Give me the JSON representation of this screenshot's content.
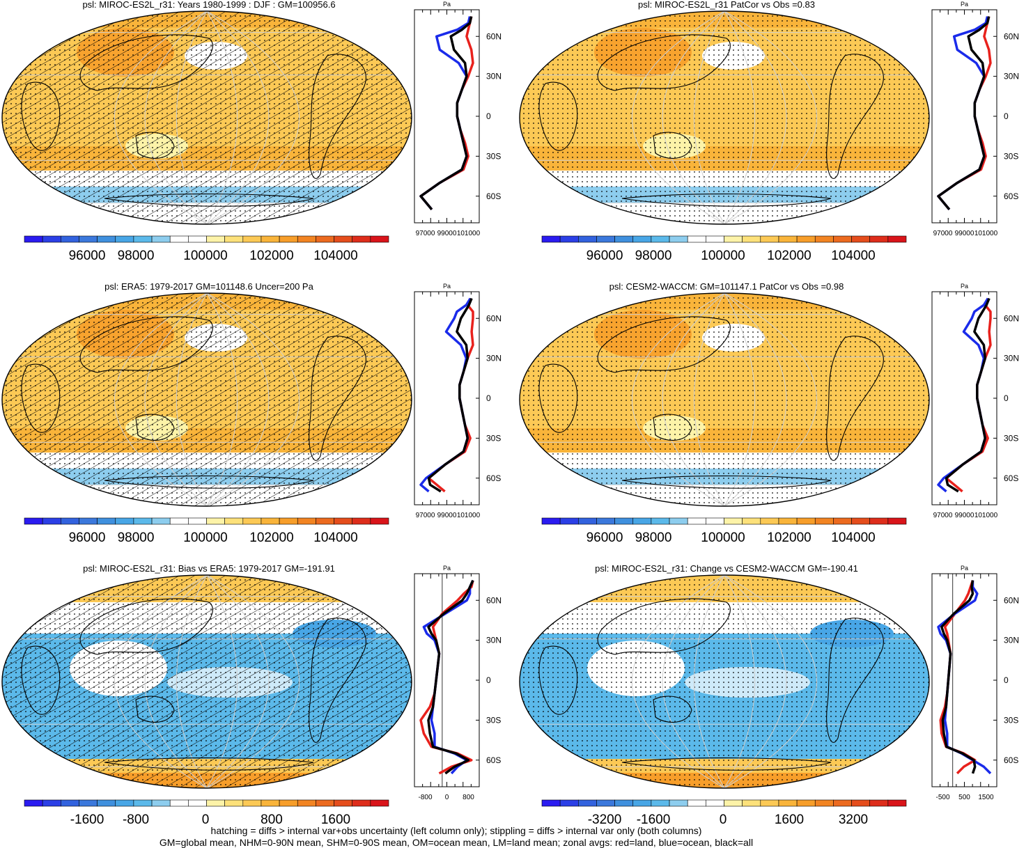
{
  "panels": [
    {
      "title": "psl: MIROC-ES2L_r31: Years 1980-1999 : DJF : GM=100956.6",
      "kind": "abs",
      "hatch": true,
      "colorbar_ticks": [
        "96000",
        "98000",
        "100000",
        "102000",
        "104000"
      ],
      "profile_xticks": [
        "97000",
        "99000",
        "101000"
      ],
      "profile_unit": "Pa"
    },
    {
      "title": "psl: MIROC-ES2L_r31 PatCor vs Obs =0.83",
      "kind": "abs",
      "hatch": false,
      "colorbar_ticks": [
        "96000",
        "98000",
        "100000",
        "102000",
        "104000"
      ],
      "profile_xticks": [
        "97000",
        "99000",
        "101000"
      ],
      "profile_unit": "Pa"
    },
    {
      "title": "psl: ERA5: 1979-2017 GM=101148.6 Uncer=200 Pa",
      "kind": "abs",
      "hatch": true,
      "colorbar_ticks": [
        "96000",
        "98000",
        "100000",
        "102000",
        "104000"
      ],
      "profile_xticks": [
        "97000",
        "99000",
        "101000"
      ],
      "profile_unit": "Pa"
    },
    {
      "title": "psl: CESM2-WACCM: GM=101147.1 PatCor vs Obs =0.98",
      "kind": "abs",
      "hatch": false,
      "colorbar_ticks": [
        "96000",
        "98000",
        "100000",
        "102000",
        "104000"
      ],
      "profile_xticks": [
        "97000",
        "99000",
        "101000"
      ],
      "profile_unit": "Pa"
    },
    {
      "title": "psl: MIROC-ES2L_r31: Bias vs ERA5: 1979-2017 GM=-191.91",
      "kind": "diff",
      "hatch": true,
      "colorbar_ticks": [
        "-1600",
        "-800",
        "0",
        "800",
        "1600"
      ],
      "profile_xticks": [
        "-800",
        "0",
        "800"
      ],
      "profile_unit": "Pa"
    },
    {
      "title": "psl: MIROC-ES2L_r31: Change vs CESM2-WACCM GM=-190.41",
      "kind": "diff",
      "hatch": false,
      "colorbar_ticks": [
        "-3200",
        "-1600",
        "0",
        "1600",
        "3200"
      ],
      "profile_xticks": [
        "-500",
        "500",
        "1500"
      ],
      "profile_unit": "Pa"
    }
  ],
  "lat_labels": [
    "60N",
    "30N",
    "0",
    "30S",
    "60S"
  ],
  "colormap": [
    "#2a1bf0",
    "#2b3fe6",
    "#3262de",
    "#3b78dc",
    "#3f90de",
    "#48a6e6",
    "#5bb9ea",
    "#8dcdee",
    "#ffffff",
    "#ffffff",
    "#fdf3a8",
    "#fde17a",
    "#fcc955",
    "#f9b43a",
    "#f79e2a",
    "#f28422",
    "#ec6a1f",
    "#e54d1c",
    "#de2d1b",
    "#d9141a"
  ],
  "chart_data": [
    {
      "type": "heatmap",
      "panel": 1,
      "variable": "psl",
      "units": "Pa",
      "colorbar_ticks": [
        96000,
        98000,
        100000,
        102000,
        104000
      ],
      "zonal_profile": {
        "lat": [
          75,
          70,
          65,
          60,
          50,
          40,
          30,
          20,
          10,
          0,
          -10,
          -20,
          -30,
          -40,
          -50,
          -60,
          -70
        ],
        "series": [
          {
            "values": [
              101800,
              101700,
              101600,
              101500,
              101800,
              101900,
              101600,
              101200,
              100900,
              100900,
              101100,
              101400,
              101600,
              101300,
              99800,
              98600,
              99300
            ]
          },
          {
            "values": [
              101700,
              101600,
              100900,
              99600,
              99800,
              101000,
              101500,
              101200,
              100900,
              100900,
              101100,
              101300,
              101500,
              101200,
              99800,
              98600,
              99300
            ]
          },
          {
            "values": [
              101800,
              101700,
              101200,
              100500,
              100700,
              101400,
              101500,
              101200,
              100900,
              100900,
              101100,
              101300,
              101500,
              101200,
              99800,
              98600,
              99300
            ]
          }
        ]
      }
    },
    {
      "type": "heatmap",
      "panel": 2,
      "variable": "psl",
      "units": "Pa",
      "colorbar_ticks": [
        96000,
        98000,
        100000,
        102000,
        104000
      ],
      "zonal_profile": {
        "lat": [
          75,
          70,
          65,
          60,
          50,
          40,
          30,
          20,
          10,
          0,
          -10,
          -20,
          -30,
          -40,
          -50,
          -60,
          -70
        ],
        "series": [
          {
            "values": [
              101800,
              101700,
              101600,
              101500,
              101800,
              101900,
              101600,
              101200,
              100900,
              100900,
              101100,
              101400,
              101600,
              101300,
              99800,
              98600,
              99300
            ]
          },
          {
            "values": [
              101700,
              101600,
              100900,
              99600,
              99800,
              101000,
              101500,
              101200,
              100900,
              100900,
              101100,
              101300,
              101500,
              101200,
              99800,
              98600,
              99300
            ]
          },
          {
            "values": [
              101800,
              101700,
              101200,
              100500,
              100700,
              101400,
              101500,
              101200,
              100900,
              100900,
              101100,
              101300,
              101500,
              101200,
              99800,
              98600,
              99300
            ]
          }
        ]
      }
    },
    {
      "type": "heatmap",
      "panel": 3,
      "variable": "psl",
      "units": "Pa",
      "colorbar_ticks": [
        96000,
        98000,
        100000,
        102000,
        104000
      ],
      "zonal_profile": {
        "lat": [
          75,
          70,
          65,
          60,
          50,
          40,
          30,
          20,
          10,
          0,
          -10,
          -20,
          -30,
          -40,
          -50,
          -60,
          -65,
          -70
        ],
        "series": [
          {
            "values": [
              101700,
              101500,
              101900,
              101900,
              101800,
              101900,
              101500,
              101200,
              100900,
              100900,
              101100,
              101300,
              101700,
              101300,
              99800,
              98600,
              99200,
              99800
            ]
          },
          {
            "values": [
              101700,
              101400,
              100700,
              100500,
              99900,
              101000,
              101400,
              101200,
              100900,
              100900,
              101100,
              101300,
              101500,
              101200,
              99800,
              98400,
              98000,
              98600
            ]
          },
          {
            "values": [
              101800,
              101600,
              101300,
              101000,
              100700,
              101400,
              101500,
              101200,
              100900,
              100900,
              101100,
              101300,
              101500,
              101200,
              99800,
              98600,
              98700,
              99500
            ]
          }
        ]
      }
    },
    {
      "type": "heatmap",
      "panel": 4,
      "variable": "psl",
      "units": "Pa",
      "colorbar_ticks": [
        96000,
        98000,
        100000,
        102000,
        104000
      ],
      "zonal_profile": {
        "lat": [
          75,
          70,
          65,
          60,
          50,
          40,
          30,
          20,
          10,
          0,
          -10,
          -20,
          -30,
          -40,
          -50,
          -60,
          -65,
          -70
        ],
        "series": [
          {
            "values": [
              101700,
              101500,
              101900,
              101900,
              101800,
              101900,
              101500,
              101200,
              100900,
              100900,
              101100,
              101300,
              101700,
              101300,
              99800,
              98600,
              99200,
              99800
            ]
          },
          {
            "values": [
              101700,
              101400,
              100700,
              100500,
              99900,
              101000,
              101400,
              101200,
              100900,
              100900,
              101100,
              101300,
              101500,
              101200,
              99800,
              98400,
              98000,
              98600
            ]
          },
          {
            "values": [
              101800,
              101600,
              101300,
              101000,
              100700,
              101400,
              101500,
              101200,
              100900,
              100900,
              101100,
              101300,
              101500,
              101200,
              99800,
              98600,
              98700,
              99500
            ]
          }
        ]
      }
    },
    {
      "type": "heatmap",
      "panel": 5,
      "variable": "psl",
      "units": "Pa",
      "colorbar_ticks": [
        -1600,
        -800,
        0,
        800,
        1600
      ],
      "zonal_profile": {
        "lat": [
          75,
          70,
          65,
          60,
          50,
          40,
          35,
          30,
          20,
          10,
          0,
          -10,
          -20,
          -30,
          -40,
          -50,
          -55,
          -60,
          -65,
          -70
        ],
        "series": [
          {
            "values": [
              1000,
              950,
              700,
              500,
              0,
              -300,
              -250,
              -200,
              -100,
              -150,
              -200,
              -250,
              -400,
              -700,
              -600,
              -350,
              500,
              950,
              300,
              -100
            ]
          },
          {
            "values": [
              1000,
              900,
              900,
              800,
              100,
              -600,
              -500,
              -250,
              -100,
              -150,
              -200,
              -250,
              -300,
              -350,
              -250,
              -250,
              400,
              800,
              500,
              300
            ]
          },
          {
            "values": [
              1000,
              900,
              800,
              650,
              50,
              -450,
              -350,
              -200,
              -100,
              -150,
              -200,
              -250,
              -300,
              -450,
              -400,
              -300,
              450,
              850,
              400,
              100
            ]
          }
        ]
      }
    },
    {
      "type": "heatmap",
      "panel": 6,
      "variable": "psl",
      "units": "Pa",
      "colorbar_ticks": [
        -3200,
        -1600,
        0,
        1600,
        3200
      ],
      "zonal_profile": {
        "lat": [
          75,
          70,
          65,
          60,
          50,
          40,
          35,
          30,
          20,
          10,
          0,
          -10,
          -20,
          -30,
          -40,
          -50,
          -55,
          -60,
          -65,
          -70
        ],
        "series": [
          {
            "values": [
              900,
              800,
              700,
              550,
              100,
              -350,
              -250,
              -200,
              -100,
              -150,
              -200,
              -250,
              -350,
              -550,
              -500,
              -300,
              500,
              1000,
              500,
              200
            ]
          },
          {
            "values": [
              900,
              900,
              1100,
              1000,
              100,
              -650,
              -550,
              -300,
              -100,
              -150,
              -200,
              -250,
              -300,
              -350,
              -250,
              -250,
              400,
              900,
              1400,
              1700
            ]
          },
          {
            "values": [
              900,
              850,
              900,
              750,
              50,
              -500,
              -400,
              -250,
              -100,
              -150,
              -200,
              -250,
              -300,
              -450,
              -400,
              -280,
              450,
              950,
              1000,
              900
            ]
          }
        ]
      }
    }
  ],
  "footer": {
    "line1": "hatching = diffs > internal var+obs uncertainty (left column only); stippling = diffs > internal var only (both columns)",
    "line2": "GM=global mean, NHM=0-90N mean, SHM=0-90S mean, OM=ocean mean, LM=land mean; zonal avgs: red=land, blue=ocean, black=all"
  }
}
